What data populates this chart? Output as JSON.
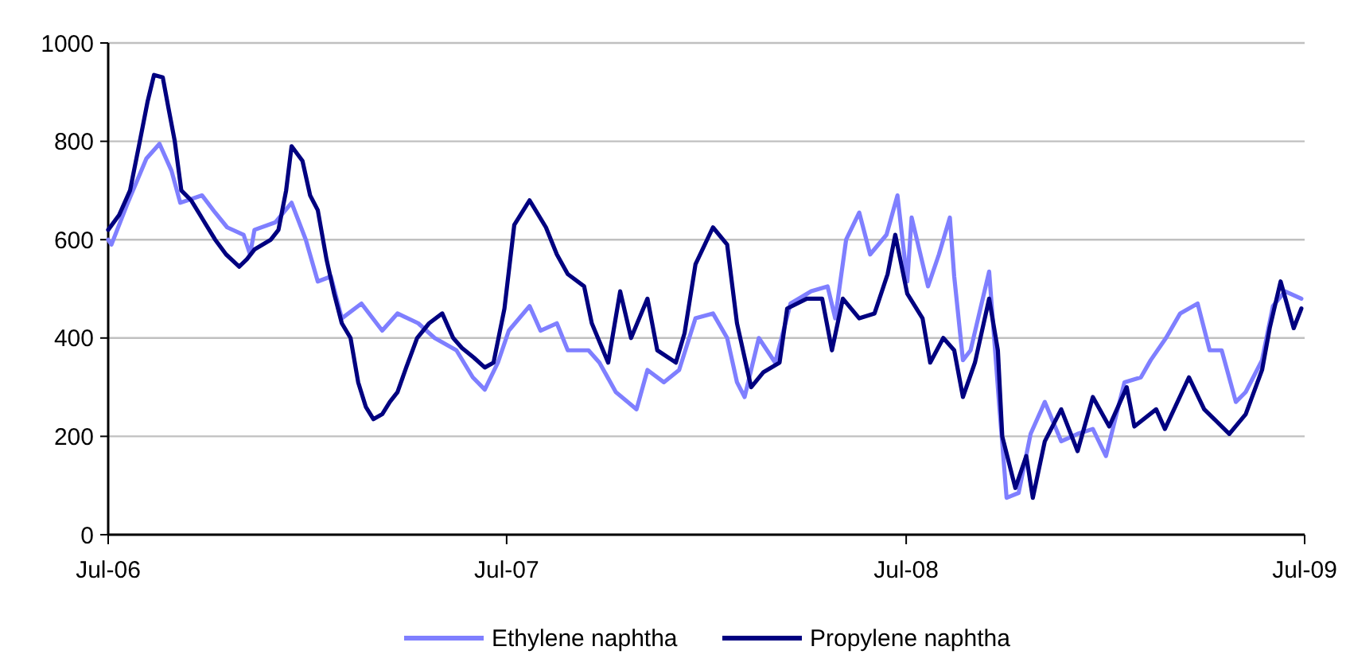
{
  "chart_data": {
    "type": "line",
    "xlim": [
      "2006-07-01",
      "2009-07-01"
    ],
    "xticks": [
      {
        "value": "2006-07-01",
        "label": "Jul-06"
      },
      {
        "value": "2007-07-01",
        "label": "Jul-07"
      },
      {
        "value": "2008-07-01",
        "label": "Jul-08"
      },
      {
        "value": "2009-07-01",
        "label": "Jul-09"
      }
    ],
    "ylim": [
      0,
      1000
    ],
    "yticks": [
      0,
      200,
      400,
      600,
      800,
      1000
    ],
    "grid": "y",
    "legend": "bottom",
    "line_style": "solid",
    "series": [
      {
        "name": "Ethylene naphtha",
        "color": "#7f7fff",
        "x": [
          "2006-07-01",
          "2006-07-04",
          "2006-07-18",
          "2006-08-05",
          "2006-08-17",
          "2006-08-28",
          "2006-09-05",
          "2006-09-25",
          "2006-10-07",
          "2006-10-18",
          "2006-11-02",
          "2006-11-08",
          "2006-11-12",
          "2006-12-01",
          "2006-12-16",
          "2006-12-29",
          "2007-01-09",
          "2007-01-21",
          "2007-01-31",
          "2007-02-18",
          "2007-03-09",
          "2007-03-23",
          "2007-04-11",
          "2007-04-26",
          "2007-05-16",
          "2007-05-31",
          "2007-06-11",
          "2007-06-23",
          "2007-07-03",
          "2007-07-22",
          "2007-08-01",
          "2007-08-16",
          "2007-08-26",
          "2007-09-14",
          "2007-09-24",
          "2007-10-09",
          "2007-10-28",
          "2007-11-07",
          "2007-11-22",
          "2007-12-06",
          "2007-12-21",
          "2008-01-06",
          "2008-01-19",
          "2008-01-28",
          "2008-02-04",
          "2008-02-17",
          "2008-03-03",
          "2008-03-17",
          "2008-04-05",
          "2008-04-20",
          "2008-04-27",
          "2008-05-07",
          "2008-05-19",
          "2008-05-29",
          "2008-06-13",
          "2008-06-23",
          "2008-07-02",
          "2008-07-06",
          "2008-07-21",
          "2008-07-31",
          "2008-08-10",
          "2008-08-14",
          "2008-08-22",
          "2008-08-29",
          "2008-09-15",
          "2008-09-24",
          "2008-10-01",
          "2008-10-12",
          "2008-10-23",
          "2008-11-05",
          "2008-11-20",
          "2008-12-05",
          "2008-12-19",
          "2008-12-31",
          "2009-01-17",
          "2009-02-01",
          "2009-02-10",
          "2009-02-24",
          "2009-03-09",
          "2009-03-25",
          "2009-04-05",
          "2009-04-16",
          "2009-04-29",
          "2009-05-08",
          "2009-05-23",
          "2009-06-02",
          "2009-06-13",
          "2009-06-28"
        ],
        "values": [
          600,
          590,
          670,
          765,
          795,
          740,
          675,
          690,
          655,
          625,
          610,
          570,
          620,
          635,
          675,
          600,
          515,
          525,
          440,
          470,
          415,
          450,
          430,
          400,
          375,
          320,
          295,
          350,
          415,
          465,
          415,
          430,
          375,
          375,
          350,
          290,
          255,
          335,
          310,
          335,
          440,
          450,
          400,
          310,
          280,
          400,
          350,
          470,
          495,
          505,
          440,
          600,
          655,
          570,
          610,
          690,
          515,
          645,
          505,
          570,
          645,
          525,
          355,
          375,
          535,
          270,
          75,
          85,
          205,
          270,
          190,
          205,
          215,
          160,
          310,
          320,
          355,
          400,
          450,
          470,
          375,
          375,
          270,
          290,
          355,
          465,
          495,
          480
        ]
      },
      {
        "name": "Propylene naphtha",
        "color": "#000080",
        "x": [
          "2006-07-01",
          "2006-07-11",
          "2006-07-21",
          "2006-07-30",
          "2006-08-06",
          "2006-08-12",
          "2006-08-20",
          "2006-08-25",
          "2006-08-31",
          "2006-09-06",
          "2006-09-15",
          "2006-09-26",
          "2006-10-07",
          "2006-10-17",
          "2006-10-29",
          "2006-11-05",
          "2006-11-12",
          "2006-11-27",
          "2006-12-04",
          "2006-12-11",
          "2006-12-16",
          "2006-12-26",
          "2007-01-02",
          "2007-01-09",
          "2007-01-17",
          "2007-01-24",
          "2007-01-31",
          "2007-02-08",
          "2007-02-15",
          "2007-02-22",
          "2007-03-01",
          "2007-03-09",
          "2007-03-16",
          "2007-03-23",
          "2007-03-31",
          "2007-04-10",
          "2007-04-21",
          "2007-05-03",
          "2007-05-13",
          "2007-05-21",
          "2007-06-01",
          "2007-06-11",
          "2007-06-19",
          "2007-06-29",
          "2007-07-08",
          "2007-07-22",
          "2007-08-06",
          "2007-08-16",
          "2007-08-26",
          "2007-09-10",
          "2007-09-17",
          "2007-10-02",
          "2007-10-13",
          "2007-10-23",
          "2007-11-07",
          "2007-11-16",
          "2007-12-03",
          "2007-12-11",
          "2007-12-21",
          "2008-01-06",
          "2008-01-19",
          "2008-01-28",
          "2008-02-10",
          "2008-02-21",
          "2008-03-07",
          "2008-03-14",
          "2008-04-01",
          "2008-04-15",
          "2008-04-24",
          "2008-05-04",
          "2008-05-19",
          "2008-06-02",
          "2008-06-14",
          "2008-06-21",
          "2008-07-02",
          "2008-07-16",
          "2008-07-23",
          "2008-08-04",
          "2008-08-14",
          "2008-08-22",
          "2008-09-02",
          "2008-09-15",
          "2008-09-23",
          "2008-09-27",
          "2008-10-09",
          "2008-10-19",
          "2008-10-25",
          "2008-11-05",
          "2008-11-20",
          "2008-12-05",
          "2008-12-19",
          "2009-01-03",
          "2009-01-19",
          "2009-01-26",
          "2009-02-15",
          "2009-02-23",
          "2009-03-17",
          "2009-03-31",
          "2009-04-23",
          "2009-05-08",
          "2009-05-23",
          "2009-05-30",
          "2009-06-09",
          "2009-06-21",
          "2009-06-28"
        ],
        "values": [
          620,
          650,
          700,
          800,
          880,
          935,
          930,
          870,
          800,
          700,
          680,
          640,
          600,
          570,
          545,
          560,
          580,
          600,
          620,
          700,
          790,
          760,
          690,
          660,
          560,
          490,
          430,
          400,
          310,
          260,
          235,
          245,
          270,
          290,
          340,
          400,
          430,
          450,
          400,
          380,
          360,
          340,
          350,
          460,
          630,
          680,
          625,
          570,
          530,
          505,
          430,
          350,
          495,
          400,
          480,
          375,
          350,
          410,
          550,
          625,
          590,
          430,
          300,
          330,
          350,
          460,
          480,
          480,
          375,
          480,
          440,
          450,
          530,
          610,
          490,
          440,
          350,
          400,
          375,
          280,
          350,
          480,
          375,
          200,
          95,
          160,
          75,
          190,
          255,
          170,
          280,
          220,
          300,
          220,
          255,
          215,
          320,
          255,
          205,
          245,
          335,
          420,
          515,
          420,
          460
        ]
      }
    ]
  }
}
